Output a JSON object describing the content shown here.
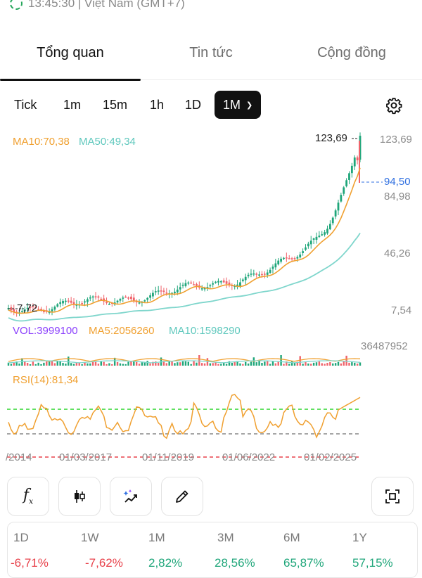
{
  "status_bar": {
    "time_text": "13:45:30 | Việt Nam (GMT+7)"
  },
  "tabs": [
    {
      "label": "Tổng quan",
      "active": true
    },
    {
      "label": "Tin tức",
      "active": false
    },
    {
      "label": "Cộng đồng",
      "active": false
    }
  ],
  "intervals": [
    "Tick",
    "1m",
    "15m",
    "1h",
    "1D",
    "1M"
  ],
  "selected_interval": "1M",
  "indicators": {
    "ma10": "MA10:70,38",
    "ma50": "MA50:49,34",
    "vol": "VOL:3999100",
    "vol_ma5": "MA5:2056260",
    "vol_ma10": "MA10:1598290",
    "rsi": "RSI(14):81,34"
  },
  "price_axis": {
    "high": "123,69",
    "upper": "84,98",
    "mid": "46,26",
    "low": "7,54"
  },
  "markers": {
    "max_label": "123,69",
    "min_label": "7,72",
    "last_price": "94,50"
  },
  "volume_axis": {
    "max": "36487952"
  },
  "date_axis": [
    "/2014",
    "01/03/2017",
    "01/11/2019",
    "01/06/2022",
    "01/02/2025"
  ],
  "colors": {
    "up": "#1fa67a",
    "down": "#f0636b",
    "ma10": "#f0a030",
    "ma50": "#7fd6cc",
    "vol_label": "#8a3ffc",
    "rsi": "#f0a030",
    "last_price": "#2f6fe0"
  },
  "tool_icons": [
    "function-icon",
    "candlestick-icon",
    "magic-draw-icon",
    "pencil-icon",
    "screenshot-icon"
  ],
  "performance": [
    {
      "period": "1D",
      "change": "-6,71%",
      "direction": "down"
    },
    {
      "period": "1W",
      "change": "-7,62%",
      "direction": "down"
    },
    {
      "period": "1M",
      "change": "2,82%",
      "direction": "up"
    },
    {
      "period": "3M",
      "change": "28,56%",
      "direction": "up"
    },
    {
      "period": "6M",
      "change": "65,87%",
      "direction": "up"
    },
    {
      "period": "1Y",
      "change": "57,15%",
      "direction": "up"
    }
  ]
}
